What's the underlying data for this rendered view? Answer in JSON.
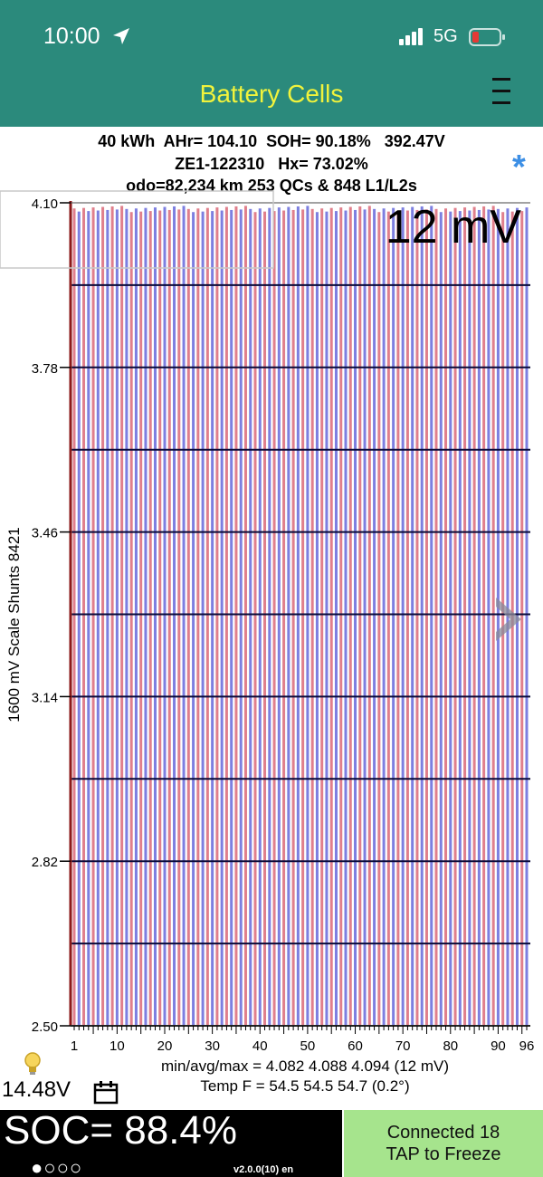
{
  "status_bar": {
    "time": "10:00",
    "network": "5G"
  },
  "header": {
    "title": "Battery Cells"
  },
  "summary": {
    "line1": "40 kWh  AHr= 104.10  SOH= 90.18%   392.47V",
    "line2": "ZE1-122310   Hx= 73.02%",
    "line3": "odo=82,234 km 253 QCs & 848 L1/L2s"
  },
  "chart_data": {
    "type": "bar",
    "ylabel": "1600 mV Scale   Shunts 8421",
    "ylim": [
      2.5,
      4.1
    ],
    "y_ticks": [
      "4.10",
      "3.78",
      "3.46",
      "3.14",
      "2.82",
      "2.50"
    ],
    "x_ticks": [
      "1",
      "10",
      "20",
      "30",
      "40",
      "50",
      "60",
      "70",
      "80",
      "90",
      "96"
    ],
    "cell_count": 96,
    "min_v": 4.082,
    "avg_v": 4.088,
    "max_v": 4.094,
    "delta_label": "12 mV",
    "colors": {
      "odd": "#e07f8c",
      "even": "#7d7fe0",
      "grid": "#0a0a3a",
      "axis": "#8b1a1a"
    }
  },
  "stats": {
    "minavgmax": "min/avg/max = 4.082 4.088 4.094  (12 mV)",
    "temp": "Temp F = 54.5  54.5  54.7  (0.2°)"
  },
  "footer": {
    "aux_voltage": "14.48V",
    "soc": "SOC= 88.4%",
    "dots": "●○○○",
    "version": "v2.0.0(10) en",
    "connected": "Connected 18",
    "tap": "TAP to Freeze"
  }
}
